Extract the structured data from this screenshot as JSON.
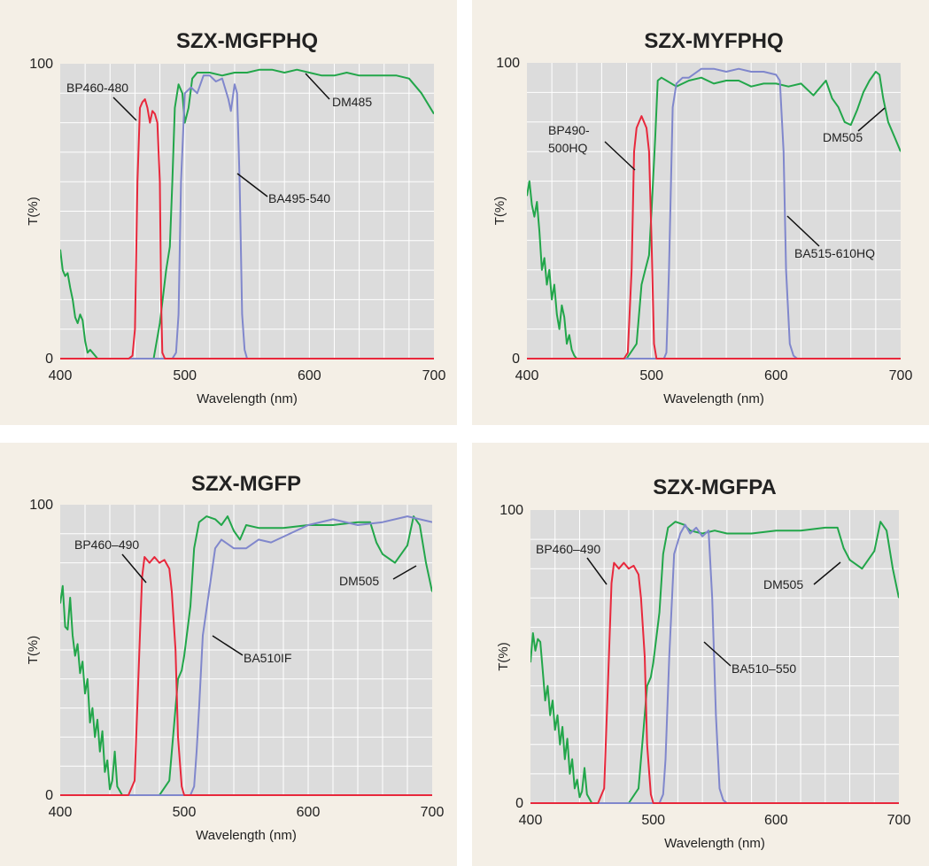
{
  "colors": {
    "excitation": "#e8283c",
    "emission": "#8087cc",
    "dichroic": "#22a64a",
    "plot_bg": "#dcdcdc",
    "panel_bg": "#f4efe6"
  },
  "chart_data": [
    {
      "type": "line",
      "title": "SZX-MGFPHQ",
      "xlabel": "Wavelength (nm)",
      "ylabel": "T(%)",
      "xlim": [
        400,
        700
      ],
      "ylim": [
        0,
        100
      ],
      "xticks": [
        400,
        500,
        600,
        700
      ],
      "yticks": [
        0,
        100
      ],
      "grid": true,
      "series": [
        {
          "name": "BP460-480",
          "role": "excitation",
          "x": [
            400,
            455,
            458,
            460,
            462,
            464,
            466,
            468,
            470,
            472,
            474,
            476,
            478,
            480,
            481,
            482,
            484,
            700
          ],
          "y": [
            0,
            0,
            1,
            10,
            60,
            85,
            87,
            88,
            85,
            80,
            84,
            83,
            80,
            60,
            20,
            2,
            0,
            0
          ]
        },
        {
          "name": "BA495-540",
          "role": "emission",
          "x": [
            400,
            490,
            493,
            495,
            497,
            500,
            505,
            510,
            515,
            520,
            525,
            530,
            535,
            537,
            540,
            542,
            544,
            546,
            548,
            550,
            700
          ],
          "y": [
            0,
            0,
            2,
            15,
            60,
            90,
            92,
            90,
            96,
            96,
            94,
            95,
            88,
            84,
            93,
            90,
            60,
            15,
            3,
            0,
            0
          ]
        },
        {
          "name": "DM485",
          "role": "dichroic",
          "x": [
            400,
            402,
            404,
            406,
            408,
            410,
            412,
            414,
            416,
            418,
            420,
            422,
            424,
            426,
            430,
            440,
            460,
            475,
            480,
            485,
            488,
            490,
            492,
            495,
            498,
            500,
            503,
            506,
            510,
            520,
            530,
            540,
            550,
            560,
            570,
            580,
            590,
            600,
            610,
            620,
            630,
            640,
            650,
            660,
            670,
            680,
            690,
            700
          ],
          "y": [
            37,
            30,
            28,
            29,
            24,
            20,
            14,
            12,
            15,
            13,
            6,
            2,
            3,
            2,
            0,
            0,
            0,
            0,
            12,
            30,
            38,
            60,
            85,
            93,
            90,
            80,
            85,
            95,
            97,
            97,
            96,
            97,
            97,
            98,
            98,
            97,
            98,
            97,
            96,
            96,
            97,
            96,
            96,
            96,
            96,
            95,
            90,
            83
          ]
        }
      ],
      "annotations": [
        {
          "text": "BP460-480",
          "series": "BP460-480"
        },
        {
          "text": "BA495-540",
          "series": "BA495-540"
        },
        {
          "text": "DM485",
          "series": "DM485"
        }
      ]
    },
    {
      "type": "line",
      "title": "SZX-MYFPHQ",
      "xlabel": "Wavelength (nm)",
      "ylabel": "T(%)",
      "xlim": [
        400,
        700
      ],
      "ylim": [
        0,
        100
      ],
      "xticks": [
        400,
        500,
        600,
        700
      ],
      "yticks": [
        0,
        100
      ],
      "grid": true,
      "series": [
        {
          "name": "BP490-500HQ",
          "role": "excitation",
          "x": [
            400,
            478,
            481,
            484,
            486,
            488,
            490,
            492,
            494,
            496,
            498,
            500,
            502,
            504,
            700
          ],
          "y": [
            0,
            0,
            2,
            30,
            70,
            78,
            80,
            82,
            80,
            78,
            70,
            40,
            5,
            0,
            0
          ]
        },
        {
          "name": "BA515-610HQ",
          "role": "emission",
          "x": [
            400,
            510,
            512,
            514,
            517,
            520,
            525,
            530,
            540,
            550,
            560,
            570,
            580,
            590,
            600,
            603,
            606,
            608,
            611,
            614,
            617,
            620,
            700
          ],
          "y": [
            0,
            0,
            2,
            30,
            85,
            93,
            95,
            95,
            98,
            98,
            97,
            98,
            97,
            97,
            96,
            94,
            70,
            30,
            5,
            1,
            0,
            0,
            0
          ]
        },
        {
          "name": "DM505",
          "role": "dichroic",
          "x": [
            400,
            402,
            404,
            406,
            408,
            410,
            412,
            414,
            416,
            418,
            420,
            422,
            424,
            426,
            428,
            430,
            432,
            434,
            436,
            438,
            440,
            470,
            480,
            488,
            492,
            495,
            498,
            500,
            503,
            505,
            508,
            512,
            520,
            530,
            540,
            550,
            560,
            570,
            580,
            590,
            600,
            610,
            620,
            630,
            640,
            645,
            650,
            655,
            660,
            665,
            670,
            675,
            680,
            683,
            686,
            690,
            695,
            700
          ],
          "y": [
            55,
            60,
            52,
            48,
            53,
            43,
            30,
            34,
            25,
            30,
            20,
            25,
            15,
            10,
            18,
            14,
            5,
            8,
            3,
            1,
            0,
            0,
            0,
            5,
            25,
            30,
            35,
            50,
            75,
            94,
            95,
            94,
            92,
            94,
            95,
            93,
            94,
            94,
            92,
            93,
            93,
            92,
            93,
            89,
            94,
            88,
            85,
            80,
            79,
            84,
            90,
            94,
            97,
            96,
            88,
            80,
            75,
            70
          ]
        }
      ],
      "annotations": [
        {
          "text": "BP490-",
          "series": "BP490-500HQ"
        },
        {
          "text": "500HQ",
          "series": "BP490-500HQ"
        },
        {
          "text": "BA515-610HQ",
          "series": "BA515-610HQ"
        },
        {
          "text": "DM505",
          "series": "DM505"
        }
      ]
    },
    {
      "type": "line",
      "title": "SZX-MGFP",
      "xlabel": "Wavelength (nm)",
      "ylabel": "T(%)",
      "xlim": [
        400,
        700
      ],
      "ylim": [
        0,
        100
      ],
      "xticks": [
        400,
        500,
        600,
        700
      ],
      "yticks": [
        0,
        100
      ],
      "grid": true,
      "series": [
        {
          "name": "BP460-490",
          "role": "excitation",
          "x": [
            400,
            455,
            460,
            463,
            466,
            468,
            472,
            476,
            480,
            484,
            488,
            490,
            493,
            495,
            498,
            500,
            700
          ],
          "y": [
            0,
            0,
            5,
            40,
            75,
            82,
            80,
            82,
            80,
            81,
            78,
            70,
            50,
            20,
            3,
            0,
            0
          ]
        },
        {
          "name": "BA510IF",
          "role": "emission",
          "x": [
            400,
            505,
            508,
            510,
            512,
            515,
            520,
            525,
            530,
            540,
            550,
            560,
            570,
            580,
            600,
            620,
            640,
            660,
            680,
            690,
            700
          ],
          "y": [
            0,
            0,
            3,
            15,
            30,
            55,
            70,
            85,
            88,
            85,
            85,
            88,
            87,
            89,
            93,
            95,
            93,
            94,
            96,
            95,
            94
          ]
        },
        {
          "name": "DM505",
          "role": "dichroic",
          "x": [
            400,
            402,
            404,
            406,
            408,
            410,
            412,
            414,
            416,
            418,
            420,
            422,
            424,
            426,
            428,
            430,
            432,
            434,
            436,
            438,
            440,
            442,
            444,
            446,
            450,
            470,
            480,
            488,
            492,
            495,
            498,
            500,
            505,
            508,
            512,
            518,
            525,
            530,
            535,
            540,
            545,
            550,
            560,
            580,
            600,
            620,
            640,
            650,
            655,
            660,
            670,
            680,
            685,
            690,
            695,
            700
          ],
          "y": [
            66,
            72,
            58,
            57,
            68,
            55,
            48,
            52,
            42,
            46,
            35,
            40,
            25,
            30,
            20,
            26,
            15,
            22,
            8,
            12,
            2,
            5,
            15,
            3,
            0,
            0,
            0,
            5,
            25,
            40,
            43,
            48,
            65,
            85,
            94,
            96,
            95,
            93,
            96,
            91,
            88,
            93,
            92,
            92,
            93,
            93,
            94,
            94,
            87,
            83,
            80,
            86,
            96,
            93,
            80,
            70
          ]
        }
      ],
      "annotations": [
        {
          "text": "BP460–490",
          "series": "BP460-490"
        },
        {
          "text": "BA510IF",
          "series": "BA510IF"
        },
        {
          "text": "DM505",
          "series": "DM505"
        }
      ]
    },
    {
      "type": "line",
      "title": "SZX-MGFPA",
      "xlabel": "Wavelength (nm)",
      "ylabel": "T(%)",
      "xlim": [
        400,
        700
      ],
      "ylim": [
        0,
        100
      ],
      "xticks": [
        400,
        500,
        600,
        700
      ],
      "yticks": [
        0,
        100
      ],
      "grid": true,
      "series": [
        {
          "name": "BP460-490",
          "role": "excitation",
          "x": [
            400,
            455,
            460,
            463,
            466,
            468,
            472,
            476,
            480,
            484,
            488,
            490,
            493,
            495,
            498,
            500,
            700
          ],
          "y": [
            0,
            0,
            5,
            40,
            75,
            82,
            80,
            82,
            80,
            81,
            78,
            70,
            50,
            20,
            3,
            0,
            0
          ]
        },
        {
          "name": "BA510-550",
          "role": "emission",
          "x": [
            400,
            505,
            508,
            510,
            513,
            517,
            522,
            526,
            530,
            535,
            540,
            545,
            548,
            551,
            554,
            557,
            560,
            700
          ],
          "y": [
            0,
            0,
            3,
            15,
            50,
            85,
            92,
            95,
            92,
            94,
            91,
            93,
            70,
            30,
            5,
            1,
            0,
            0
          ]
        },
        {
          "name": "DM505",
          "role": "dichroic",
          "x": [
            400,
            402,
            404,
            406,
            408,
            410,
            412,
            414,
            416,
            418,
            420,
            422,
            424,
            426,
            428,
            430,
            432,
            434,
            436,
            438,
            440,
            442,
            444,
            446,
            450,
            470,
            480,
            488,
            492,
            495,
            498,
            500,
            505,
            508,
            512,
            518,
            525,
            530,
            540,
            550,
            560,
            580,
            600,
            620,
            640,
            650,
            655,
            660,
            670,
            680,
            685,
            690,
            695,
            700
          ],
          "y": [
            48,
            58,
            52,
            56,
            55,
            45,
            35,
            40,
            30,
            35,
            25,
            30,
            20,
            26,
            15,
            22,
            10,
            15,
            5,
            8,
            2,
            4,
            12,
            3,
            0,
            0,
            0,
            5,
            25,
            40,
            43,
            48,
            65,
            85,
            94,
            96,
            95,
            93,
            92,
            93,
            92,
            92,
            93,
            93,
            94,
            94,
            87,
            83,
            80,
            86,
            96,
            93,
            80,
            70
          ]
        }
      ],
      "annotations": [
        {
          "text": "BP460–490",
          "series": "BP460-490"
        },
        {
          "text": "BA510–550",
          "series": "BA510-550"
        },
        {
          "text": "DM505",
          "series": "DM505"
        }
      ]
    }
  ]
}
